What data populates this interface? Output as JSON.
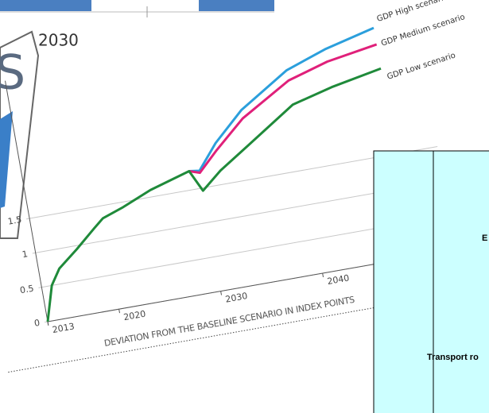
{
  "chart_data": {
    "type": "line",
    "title": "2030",
    "xlabel": "DEVIATION FROM THE BASELINE SCENARIO IN INDEX POINTS",
    "xlim": [
      2013,
      2050
    ],
    "xticks": [
      2013,
      2020,
      2030,
      2040
    ],
    "ylim": [
      0,
      3.5
    ],
    "yticks": [
      0,
      0.5,
      1,
      1.5
    ],
    "grid": true,
    "series": [
      {
        "name": "GDP High scenario",
        "color": "#2b9fdc",
        "x": [
          2029,
          2030,
          2032,
          2035,
          2040,
          2044,
          2049
        ],
        "values": [
          1.77,
          1.75,
          2.1,
          2.5,
          2.95,
          3.15,
          3.33
        ]
      },
      {
        "name": "GDP Medium scenario",
        "color": "#e0207a",
        "x": [
          2029,
          2030,
          2032,
          2035,
          2040,
          2044,
          2049
        ],
        "values": [
          1.77,
          1.72,
          2.0,
          2.38,
          2.8,
          2.97,
          3.09
        ]
      },
      {
        "name": "GDP Low scenario",
        "color": "#1f8a3a",
        "x": [
          2013,
          2014,
          2015,
          2017,
          2019,
          2020,
          2022,
          2025,
          2029,
          2030,
          2032,
          2035,
          2040,
          2044,
          2049
        ],
        "values": [
          0,
          0.5,
          0.72,
          0.95,
          1.2,
          1.32,
          1.42,
          1.6,
          1.77,
          1.46,
          1.7,
          1.98,
          2.45,
          2.6,
          2.74
        ]
      }
    ]
  },
  "left_panel": {
    "text": "S"
  },
  "table_fragment": {
    "cells": [
      "E",
      "Transport ro"
    ]
  }
}
